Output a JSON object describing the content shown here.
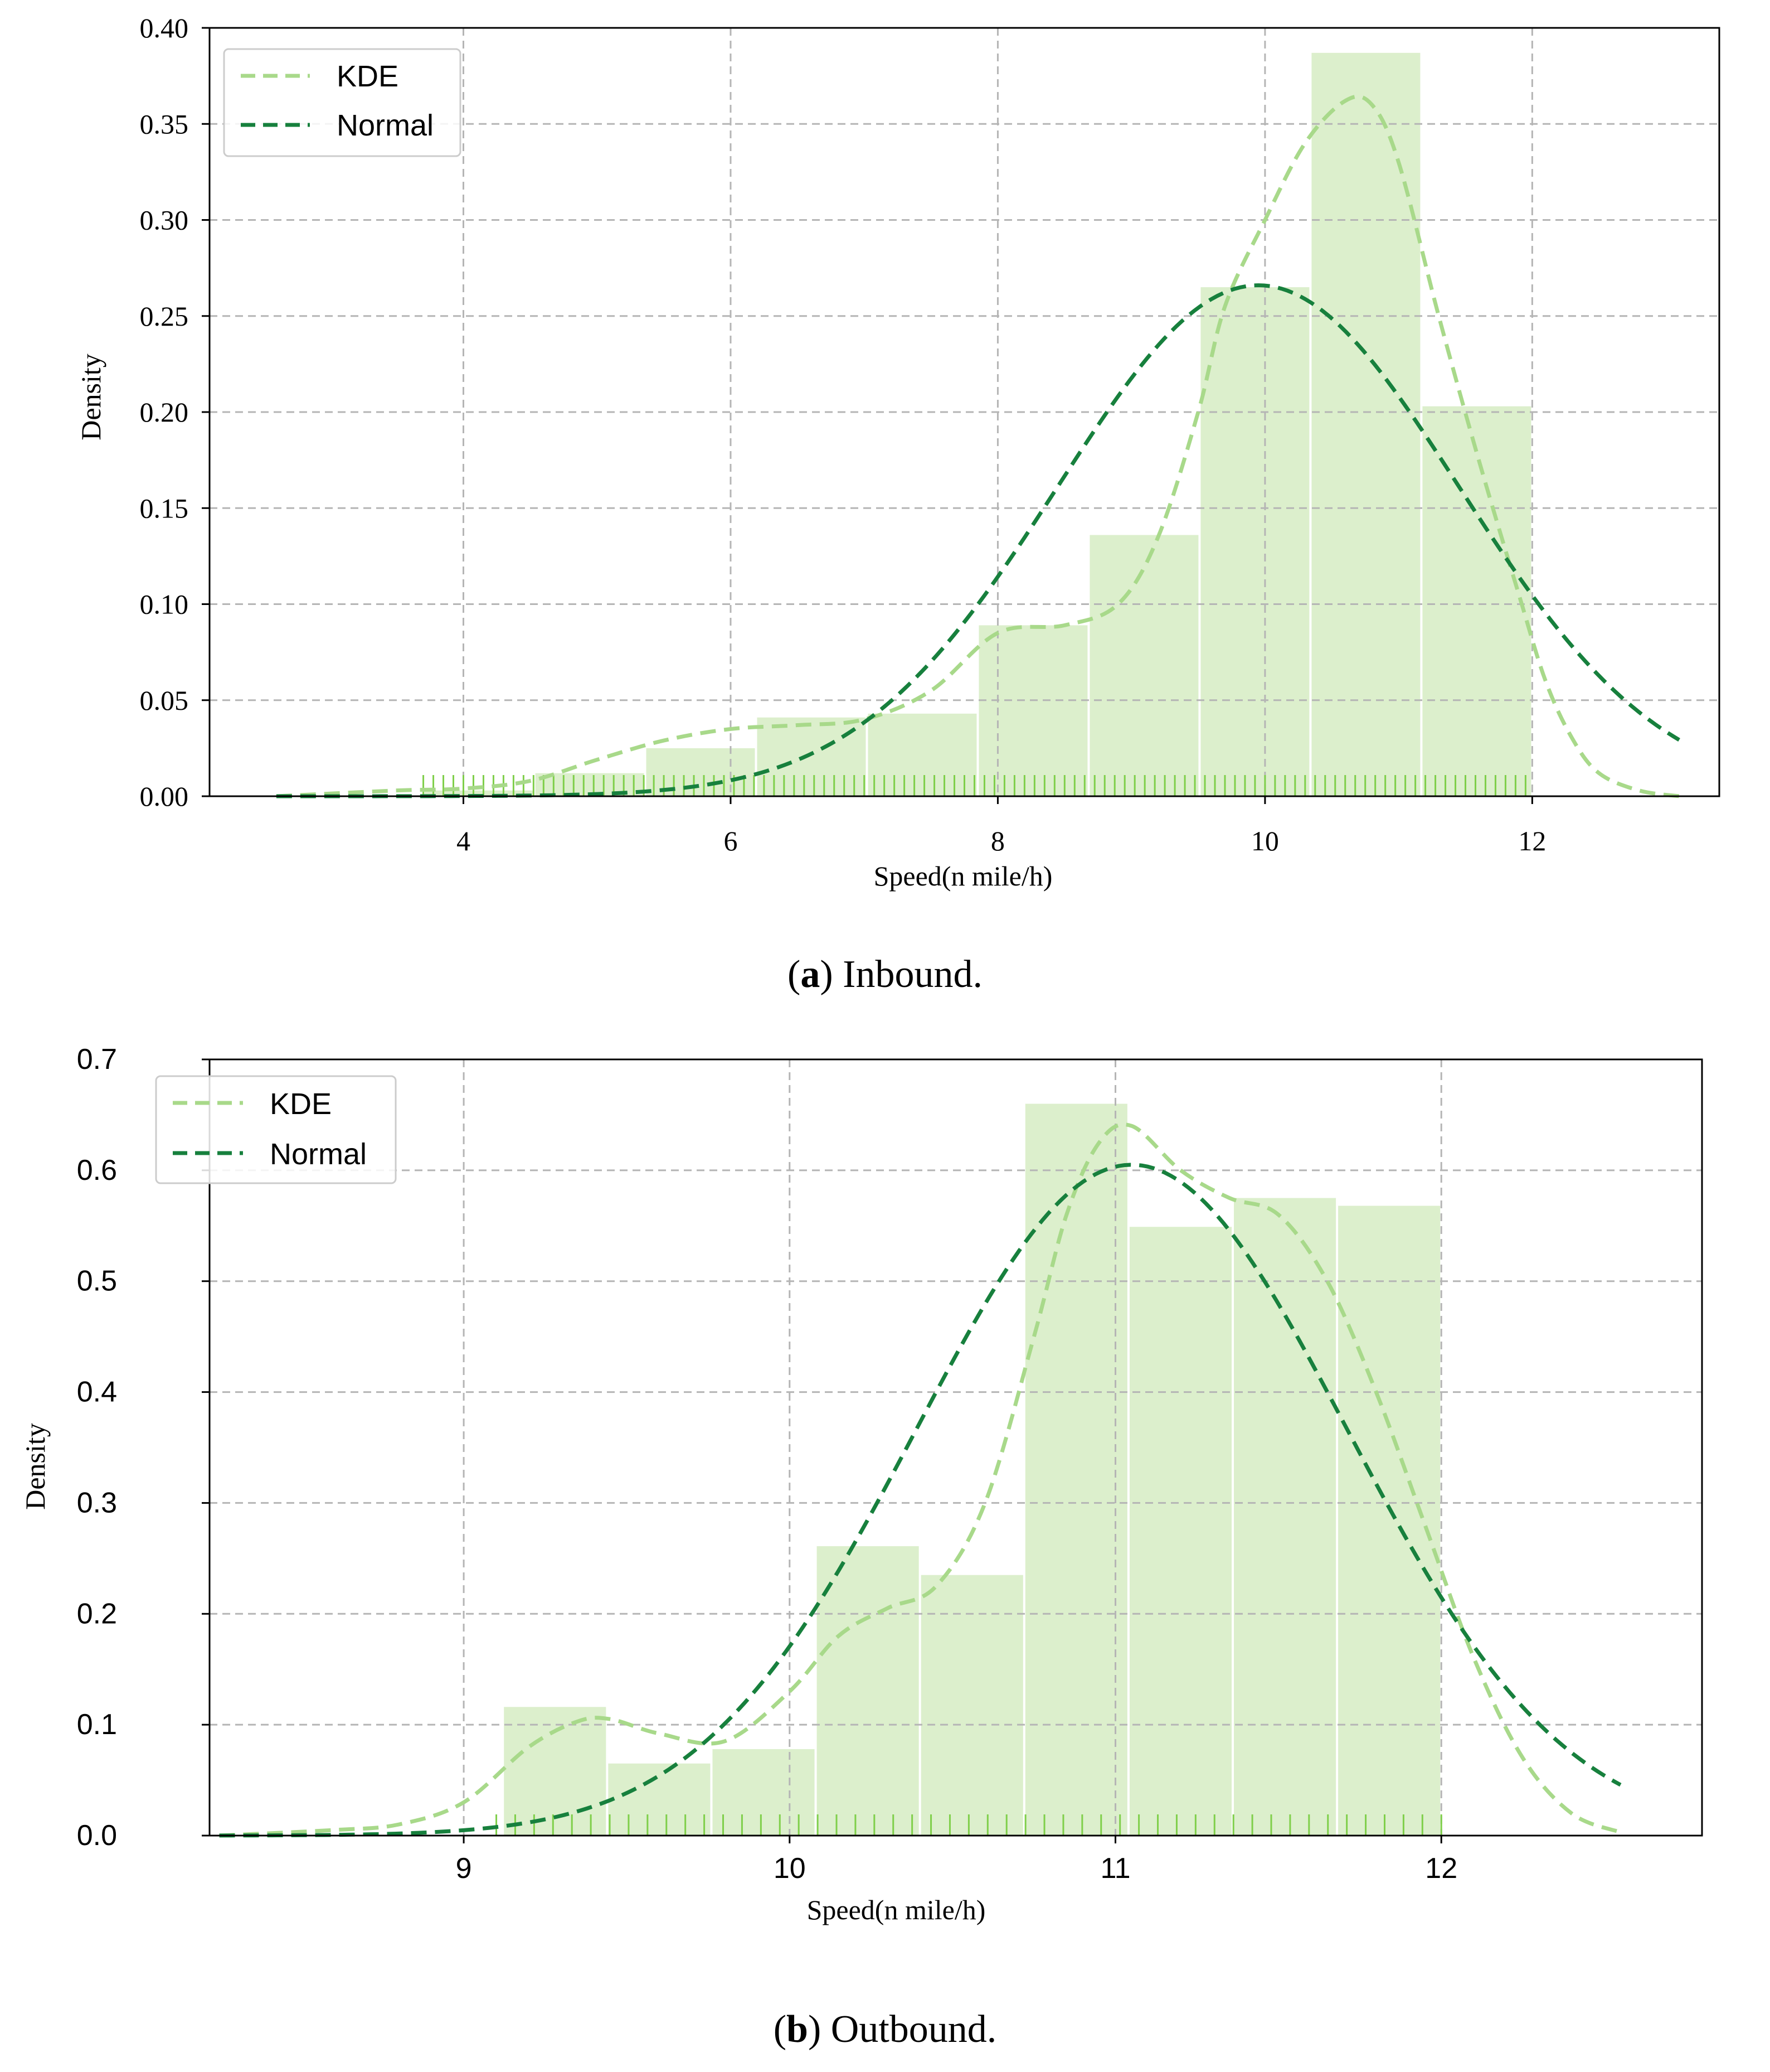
{
  "colors": {
    "kde": "#a8d98a",
    "normal": "#17803d",
    "bars": "#dcefcc",
    "rug": "#7fcf4a",
    "grid": "#b5b5b5"
  },
  "captions": {
    "a": {
      "letter": "a",
      "text": "Inbound."
    },
    "b": {
      "letter": "b",
      "text": "Outbound."
    }
  },
  "chart_data": [
    {
      "id": "a",
      "type": "bar",
      "subtype": "histogram-with-kde-and-normal-fit",
      "title": "",
      "xlabel": "Speed(n mile/h)",
      "ylabel": "Density",
      "xlim": [
        2.1,
        13.4
      ],
      "ylim": [
        0,
        0.4
      ],
      "xticks": [
        4,
        6,
        8,
        10,
        12
      ],
      "xtick_labels": [
        "4",
        "6",
        "8",
        "10",
        "12"
      ],
      "yticks": [
        0,
        0.05,
        0.1,
        0.15,
        0.2,
        0.25,
        0.3,
        0.35,
        0.4
      ],
      "ytick_labels": [
        "0.00",
        "0.05",
        "0.10",
        "0.15",
        "0.20",
        "0.25",
        "0.30",
        "0.35",
        "0.40"
      ],
      "grid": true,
      "legend": {
        "position": "top-left",
        "entries": [
          "KDE",
          "Normal"
        ]
      },
      "bins": [
        {
          "x0": 3.7,
          "x1": 4.53,
          "value": 0.003
        },
        {
          "x0": 4.53,
          "x1": 5.36,
          "value": 0.012
        },
        {
          "x0": 5.36,
          "x1": 6.19,
          "value": 0.025
        },
        {
          "x0": 6.19,
          "x1": 7.02,
          "value": 0.041
        },
        {
          "x0": 7.02,
          "x1": 7.85,
          "value": 0.043
        },
        {
          "x0": 7.85,
          "x1": 8.68,
          "value": 0.089
        },
        {
          "x0": 8.68,
          "x1": 9.51,
          "value": 0.136
        },
        {
          "x0": 9.51,
          "x1": 10.34,
          "value": 0.265
        },
        {
          "x0": 10.34,
          "x1": 11.17,
          "value": 0.387
        },
        {
          "x0": 11.17,
          "x1": 12.0,
          "value": 0.203
        }
      ],
      "series": [
        {
          "name": "KDE",
          "x": [
            2.6,
            3.5,
            4.0,
            4.5,
            5.0,
            5.5,
            6.0,
            6.5,
            7.0,
            7.5,
            8.0,
            8.5,
            8.9,
            9.2,
            9.5,
            9.7,
            10.0,
            10.3,
            10.6,
            10.8,
            11.0,
            11.3,
            11.6,
            11.9,
            12.1,
            12.3,
            12.5,
            12.8,
            13.1
          ],
          "values": [
            0.0,
            0.003,
            0.004,
            0.008,
            0.019,
            0.029,
            0.035,
            0.037,
            0.04,
            0.055,
            0.085,
            0.089,
            0.1,
            0.135,
            0.2,
            0.255,
            0.3,
            0.34,
            0.362,
            0.36,
            0.33,
            0.25,
            0.175,
            0.105,
            0.06,
            0.03,
            0.012,
            0.003,
            0.0
          ]
        },
        {
          "name": "Normal",
          "mean": 9.95,
          "std": 1.5,
          "peak": 0.266,
          "x_range": [
            2.6,
            13.1
          ]
        }
      ],
      "rug_range": [
        3.7,
        12.0
      ]
    },
    {
      "id": "b",
      "type": "bar",
      "subtype": "histogram-with-kde-and-normal-fit",
      "title": "",
      "xlabel": "Speed(n mile/h)",
      "ylabel": "Density",
      "xlim": [
        8.22,
        12.8
      ],
      "ylim": [
        0,
        0.7
      ],
      "xticks": [
        9,
        10,
        11,
        12
      ],
      "xtick_labels": [
        "9",
        "10",
        "11",
        "12"
      ],
      "yticks": [
        0,
        0.1,
        0.2,
        0.3,
        0.4,
        0.5,
        0.6,
        0.7
      ],
      "ytick_labels": [
        "0.0",
        "0.1",
        "0.2",
        "0.3",
        "0.4",
        "0.5",
        "0.6",
        "0.7"
      ],
      "grid": true,
      "legend": {
        "position": "top-left",
        "entries": [
          "KDE",
          "Normal"
        ]
      },
      "bins": [
        {
          "x0": 9.12,
          "x1": 9.44,
          "value": 0.116
        },
        {
          "x0": 9.44,
          "x1": 9.76,
          "value": 0.065
        },
        {
          "x0": 9.76,
          "x1": 10.08,
          "value": 0.078
        },
        {
          "x0": 10.08,
          "x1": 10.4,
          "value": 0.261
        },
        {
          "x0": 10.4,
          "x1": 10.72,
          "value": 0.235
        },
        {
          "x0": 10.72,
          "x1": 11.04,
          "value": 0.66
        },
        {
          "x0": 11.04,
          "x1": 11.36,
          "value": 0.549
        },
        {
          "x0": 11.36,
          "x1": 11.68,
          "value": 0.575
        },
        {
          "x0": 11.68,
          "x1": 12.0,
          "value": 0.568
        }
      ],
      "series": [
        {
          "name": "KDE",
          "x": [
            8.25,
            8.6,
            8.8,
            9.0,
            9.2,
            9.35,
            9.45,
            9.6,
            9.8,
            10.0,
            10.15,
            10.3,
            10.45,
            10.6,
            10.75,
            10.85,
            10.95,
            11.05,
            11.2,
            11.35,
            11.5,
            11.65,
            11.8,
            11.95,
            12.1,
            12.25,
            12.4,
            12.55
          ],
          "values": [
            0.0,
            0.005,
            0.01,
            0.03,
            0.08,
            0.103,
            0.105,
            0.092,
            0.085,
            0.13,
            0.18,
            0.205,
            0.225,
            0.3,
            0.45,
            0.56,
            0.625,
            0.64,
            0.6,
            0.575,
            0.56,
            0.5,
            0.4,
            0.28,
            0.16,
            0.07,
            0.02,
            0.003
          ]
        },
        {
          "name": "Normal",
          "mean": 11.05,
          "std": 0.66,
          "peak": 0.605,
          "x_range": [
            8.25,
            12.55
          ]
        }
      ],
      "rug_range": [
        9.1,
        12.0
      ]
    }
  ]
}
